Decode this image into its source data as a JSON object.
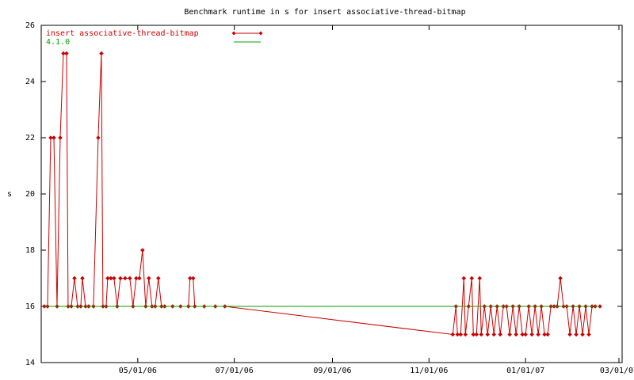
{
  "chart_data": {
    "type": "line",
    "title": "Benchmark runtime in s for insert associative-thread-bitmap",
    "y_label": "s",
    "x": [
      "03/03/06",
      "03/05/06",
      "03/07/06",
      "03/09/06",
      "03/11/06",
      "03/13/06",
      "03/15/06",
      "03/17/06",
      "03/18/06",
      "03/20/06",
      "03/22/06",
      "03/24/06",
      "03/26/06",
      "03/27/06",
      "03/29/06",
      "03/31/06",
      "04/03/06",
      "04/06/06",
      "04/08/06",
      "04/09/06",
      "04/11/06",
      "04/12/06",
      "04/14/06",
      "04/16/06",
      "04/18/06",
      "04/20/06",
      "04/23/06",
      "04/26/06",
      "04/28/06",
      "04/30/06",
      "05/02/06",
      "05/04/06",
      "05/06/06",
      "05/08/06",
      "05/10/06",
      "05/12/06",
      "05/14/06",
      "05/16/06",
      "05/18/06",
      "05/23/06",
      "05/28/06",
      "06/02/06",
      "06/03/06",
      "06/05/06",
      "06/06/06",
      "06/12/06",
      "06/19/06",
      "06/25/06",
      "11/16/06",
      "11/18/06",
      "11/19/06",
      "11/21/06",
      "11/23/06",
      "11/24/06",
      "11/26/06",
      "11/28/06",
      "11/29/06",
      "12/01/06",
      "12/03/06",
      "12/04/06",
      "12/06/06",
      "12/08/06",
      "12/10/06",
      "12/12/06",
      "12/14/06",
      "12/16/06",
      "12/18/06",
      "12/20/06",
      "12/22/06",
      "12/24/06",
      "12/26/06",
      "12/28/06",
      "12/30/06",
      "01/01/07",
      "01/03/07",
      "01/05/07",
      "01/07/07",
      "01/09/07",
      "01/11/07",
      "01/13/07",
      "01/15/07",
      "01/17/07",
      "01/19/07",
      "01/21/07",
      "01/23/07",
      "01/25/07",
      "01/27/07",
      "01/29/07",
      "01/31/07",
      "02/02/07",
      "02/04/07",
      "02/06/07",
      "02/08/07",
      "02/10/07",
      "02/12/07",
      "02/14/07",
      "02/17/07"
    ],
    "series": [
      {
        "name": "insert associative-thread-bitmap",
        "color": "#cc0000",
        "marker": true,
        "values": [
          16,
          16,
          22,
          22,
          16,
          22,
          25,
          25,
          16,
          16,
          17,
          16,
          16,
          17,
          16,
          16,
          16,
          22,
          25,
          16,
          16,
          17,
          17,
          17,
          16,
          17,
          17,
          17,
          16,
          17,
          17,
          18,
          16,
          17,
          16,
          16,
          17,
          16,
          16,
          16,
          16,
          16,
          17,
          17,
          16,
          16,
          16,
          16,
          15,
          16,
          15,
          15,
          17,
          15,
          16,
          17,
          15,
          15,
          17,
          15,
          16,
          15,
          16,
          15,
          16,
          15,
          16,
          16,
          15,
          16,
          15,
          16,
          15,
          15,
          16,
          15,
          16,
          15,
          16,
          15,
          15,
          16,
          16,
          16,
          17,
          16,
          16,
          15,
          16,
          15,
          16,
          15,
          16,
          15,
          16,
          16,
          16
        ]
      },
      {
        "name": "4.1.0",
        "color": "#00a000",
        "marker": false,
        "values": [
          16,
          16,
          16,
          16,
          16,
          16,
          16,
          16,
          16,
          16,
          16,
          16,
          16,
          16,
          16,
          16,
          16,
          16,
          16,
          16,
          16,
          16,
          16,
          16,
          16,
          16,
          16,
          16,
          16,
          16,
          16,
          16,
          16,
          16,
          16,
          16,
          16,
          16,
          16,
          16,
          16,
          16,
          16,
          16,
          16,
          16,
          16,
          16,
          16,
          16,
          16,
          16,
          16,
          16,
          16,
          16,
          16,
          16,
          16,
          16,
          16,
          16,
          16,
          16,
          16,
          16,
          16,
          16,
          16,
          16,
          16,
          16,
          16,
          16,
          16,
          16,
          16,
          16,
          16,
          16,
          16,
          16,
          16,
          16,
          16,
          16,
          16,
          16,
          16,
          16,
          16,
          16,
          16,
          16,
          16,
          16,
          16
        ]
      }
    ],
    "xlim": [
      "03/01/06",
      "03/03/07"
    ],
    "xticks": [
      "05/01/06",
      "07/01/06",
      "09/01/06",
      "11/01/06",
      "01/01/07",
      "03/01/07"
    ],
    "ylim": [
      14,
      26
    ],
    "yticks": [
      14,
      16,
      18,
      20,
      22,
      24,
      26
    ],
    "legend": "top-left"
  }
}
